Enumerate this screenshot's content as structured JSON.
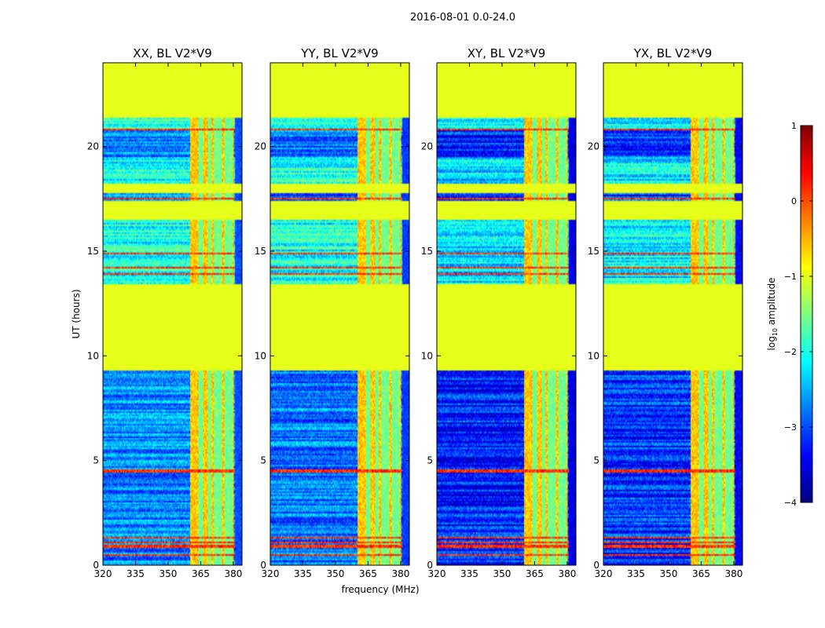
{
  "figure_title": "2016-08-01 0.0-24.0",
  "xlabel": "frequency (MHz)",
  "ylabel": "UT (hours)",
  "colorbar": {
    "label": "log10 amplitude",
    "label_main": "log",
    "label_sub": "10",
    "label_rest": " amplitude",
    "range": [
      -4,
      1
    ],
    "ticks": [
      "−4",
      "−3",
      "−2",
      "−1",
      "0",
      "1"
    ],
    "tick_values": [
      -4,
      -3,
      -2,
      -1,
      0,
      1
    ],
    "colormap": "jet",
    "colormap_stops": [
      "#00007f",
      "#0000ff",
      "#007fff",
      "#00ffff",
      "#7fff7f",
      "#ffff00",
      "#ff7f00",
      "#ff0000",
      "#7f0000"
    ]
  },
  "chart_data": {
    "type": "heatmap",
    "panels": [
      {
        "title": "XX, BL V2*V9",
        "polarization": "XX",
        "baseline": "V2*V9"
      },
      {
        "title": "YY, BL V2*V9",
        "polarization": "YY",
        "baseline": "V2*V9"
      },
      {
        "title": "XY, BL V2*V9",
        "polarization": "XY",
        "baseline": "V2*V9"
      },
      {
        "title": "YX, BL V2*V9",
        "polarization": "YX",
        "baseline": "V2*V9"
      }
    ],
    "x_tick_labels": [
      "320",
      "335",
      "350",
      "365",
      "380"
    ],
    "x_tick_values": [
      320,
      335,
      350,
      365,
      380
    ],
    "xlim": [
      320,
      384
    ],
    "y_tick_labels": [
      "0",
      "5",
      "10",
      "15",
      "20"
    ],
    "y_tick_values": [
      0,
      5,
      10,
      15,
      20
    ],
    "ylim": [
      0,
      24
    ],
    "value_range": [
      -4,
      1
    ],
    "flagged_value": -1,
    "flagged_time_ranges_hours": [
      [
        9.3,
        13.4
      ],
      [
        16.5,
        17.4
      ],
      [
        17.8,
        18.2
      ],
      [
        21.4,
        24.0
      ]
    ],
    "rfi_frequency_band_mhz": [
      360,
      380
    ],
    "rfi_channels_mhz": [
      365,
      369,
      372,
      374,
      377,
      379
    ],
    "bright_time_rows_hours": [
      0.5,
      0.9,
      1.1,
      1.3,
      4.5,
      13.9,
      14.2,
      14.9,
      17.5,
      20.8
    ],
    "panel_background_levels": [
      {
        "panel": "XX",
        "noise_level": -2.7,
        "active_period_level": -2.0
      },
      {
        "panel": "YY",
        "noise_level": -2.8,
        "active_period_level": -2.0
      },
      {
        "panel": "XY",
        "noise_level": -3.2,
        "active_period_level": -2.3
      },
      {
        "panel": "YX",
        "noise_level": -3.1,
        "active_period_level": -2.2
      }
    ]
  }
}
